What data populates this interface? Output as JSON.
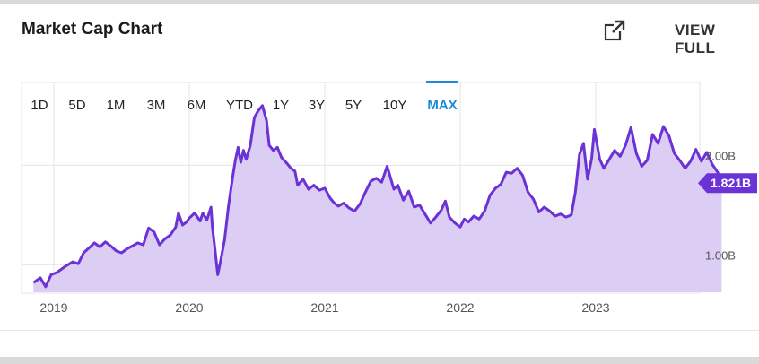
{
  "header": {
    "title": "Market Cap Chart",
    "external_icon": "external-link-icon",
    "view_full_label": "VIEW FULL"
  },
  "range_selector": {
    "options": [
      "1D",
      "5D",
      "1M",
      "3M",
      "6M",
      "YTD",
      "1Y",
      "3Y",
      "5Y",
      "10Y",
      "MAX"
    ],
    "selected": "MAX"
  },
  "colors": {
    "line": "#6b33d6",
    "fill": "#dccdf4",
    "accent": "#1a8cd8",
    "badge": "#6b33d6",
    "grid": "#e4e4e4",
    "axis_text": "#555555"
  },
  "chart_data": {
    "type": "area",
    "title": "Market Cap Chart",
    "x_tick_labels": [
      "2019",
      "2020",
      "2021",
      "2022",
      "2023"
    ],
    "y_tick_labels": [
      "1.00B",
      "2.00B"
    ],
    "ylim": [
      0.75,
      2.75
    ],
    "unit": "B",
    "grid": true,
    "current_value_label": "1.821B",
    "current_value": 1.821,
    "points": [
      [
        2018.85,
        0.82
      ],
      [
        2018.9,
        0.87
      ],
      [
        2018.94,
        0.78
      ],
      [
        2018.98,
        0.9
      ],
      [
        2019.02,
        0.92
      ],
      [
        2019.08,
        0.98
      ],
      [
        2019.14,
        1.03
      ],
      [
        2019.18,
        1.01
      ],
      [
        2019.22,
        1.12
      ],
      [
        2019.26,
        1.17
      ],
      [
        2019.3,
        1.22
      ],
      [
        2019.34,
        1.18
      ],
      [
        2019.38,
        1.23
      ],
      [
        2019.42,
        1.19
      ],
      [
        2019.46,
        1.14
      ],
      [
        2019.5,
        1.12
      ],
      [
        2019.54,
        1.16
      ],
      [
        2019.58,
        1.19
      ],
      [
        2019.62,
        1.22
      ],
      [
        2019.66,
        1.2
      ],
      [
        2019.7,
        1.37
      ],
      [
        2019.74,
        1.33
      ],
      [
        2019.78,
        1.2
      ],
      [
        2019.82,
        1.26
      ],
      [
        2019.86,
        1.3
      ],
      [
        2019.9,
        1.38
      ],
      [
        2019.92,
        1.52
      ],
      [
        2019.95,
        1.4
      ],
      [
        2019.98,
        1.43
      ],
      [
        2020.0,
        1.47
      ],
      [
        2020.04,
        1.52
      ],
      [
        2020.08,
        1.44
      ],
      [
        2020.1,
        1.52
      ],
      [
        2020.13,
        1.45
      ],
      [
        2020.16,
        1.58
      ],
      [
        2020.17,
        1.38
      ],
      [
        2020.19,
        1.15
      ],
      [
        2020.21,
        0.9
      ],
      [
        2020.23,
        1.03
      ],
      [
        2020.26,
        1.25
      ],
      [
        2020.29,
        1.6
      ],
      [
        2020.32,
        1.88
      ],
      [
        2020.34,
        2.05
      ],
      [
        2020.36,
        2.18
      ],
      [
        2020.38,
        2.03
      ],
      [
        2020.4,
        2.15
      ],
      [
        2020.42,
        2.06
      ],
      [
        2020.45,
        2.2
      ],
      [
        2020.48,
        2.48
      ],
      [
        2020.51,
        2.55
      ],
      [
        2020.54,
        2.6
      ],
      [
        2020.57,
        2.45
      ],
      [
        2020.59,
        2.2
      ],
      [
        2020.62,
        2.15
      ],
      [
        2020.65,
        2.18
      ],
      [
        2020.68,
        2.08
      ],
      [
        2020.72,
        2.02
      ],
      [
        2020.75,
        1.97
      ],
      [
        2020.78,
        1.94
      ],
      [
        2020.8,
        1.8
      ],
      [
        2020.84,
        1.86
      ],
      [
        2020.88,
        1.76
      ],
      [
        2020.92,
        1.8
      ],
      [
        2020.96,
        1.75
      ],
      [
        2021.0,
        1.77
      ],
      [
        2021.04,
        1.67
      ],
      [
        2021.07,
        1.62
      ],
      [
        2021.1,
        1.59
      ],
      [
        2021.14,
        1.62
      ],
      [
        2021.18,
        1.57
      ],
      [
        2021.22,
        1.54
      ],
      [
        2021.26,
        1.61
      ],
      [
        2021.3,
        1.73
      ],
      [
        2021.34,
        1.84
      ],
      [
        2021.38,
        1.87
      ],
      [
        2021.42,
        1.83
      ],
      [
        2021.46,
        1.99
      ],
      [
        2021.48,
        1.9
      ],
      [
        2021.51,
        1.76
      ],
      [
        2021.54,
        1.8
      ],
      [
        2021.58,
        1.65
      ],
      [
        2021.62,
        1.74
      ],
      [
        2021.66,
        1.58
      ],
      [
        2021.7,
        1.6
      ],
      [
        2021.74,
        1.51
      ],
      [
        2021.78,
        1.42
      ],
      [
        2021.82,
        1.48
      ],
      [
        2021.86,
        1.55
      ],
      [
        2021.89,
        1.64
      ],
      [
        2021.92,
        1.48
      ],
      [
        2021.96,
        1.42
      ],
      [
        2022.0,
        1.38
      ],
      [
        2022.03,
        1.46
      ],
      [
        2022.06,
        1.43
      ],
      [
        2022.1,
        1.49
      ],
      [
        2022.14,
        1.46
      ],
      [
        2022.18,
        1.54
      ],
      [
        2022.22,
        1.7
      ],
      [
        2022.26,
        1.77
      ],
      [
        2022.3,
        1.81
      ],
      [
        2022.34,
        1.93
      ],
      [
        2022.38,
        1.92
      ],
      [
        2022.42,
        1.97
      ],
      [
        2022.46,
        1.9
      ],
      [
        2022.5,
        1.73
      ],
      [
        2022.54,
        1.66
      ],
      [
        2022.58,
        1.53
      ],
      [
        2022.62,
        1.58
      ],
      [
        2022.66,
        1.54
      ],
      [
        2022.7,
        1.49
      ],
      [
        2022.74,
        1.51
      ],
      [
        2022.78,
        1.48
      ],
      [
        2022.82,
        1.5
      ],
      [
        2022.85,
        1.73
      ],
      [
        2022.88,
        2.11
      ],
      [
        2022.91,
        2.22
      ],
      [
        2022.94,
        1.86
      ],
      [
        2022.97,
        2.07
      ],
      [
        2022.99,
        2.36
      ],
      [
        2023.03,
        2.06
      ],
      [
        2023.06,
        1.97
      ],
      [
        2023.1,
        2.06
      ],
      [
        2023.14,
        2.15
      ],
      [
        2023.18,
        2.09
      ],
      [
        2023.22,
        2.2
      ],
      [
        2023.26,
        2.38
      ],
      [
        2023.3,
        2.12
      ],
      [
        2023.34,
        1.99
      ],
      [
        2023.38,
        2.05
      ],
      [
        2023.42,
        2.31
      ],
      [
        2023.46,
        2.22
      ],
      [
        2023.5,
        2.39
      ],
      [
        2023.54,
        2.3
      ],
      [
        2023.58,
        2.12
      ],
      [
        2023.62,
        2.05
      ],
      [
        2023.66,
        1.97
      ],
      [
        2023.7,
        2.04
      ],
      [
        2023.74,
        2.16
      ],
      [
        2023.78,
        2.04
      ],
      [
        2023.82,
        2.13
      ],
      [
        2023.86,
        2.01
      ],
      [
        2023.9,
        1.93
      ],
      [
        2023.93,
        1.82
      ]
    ]
  }
}
